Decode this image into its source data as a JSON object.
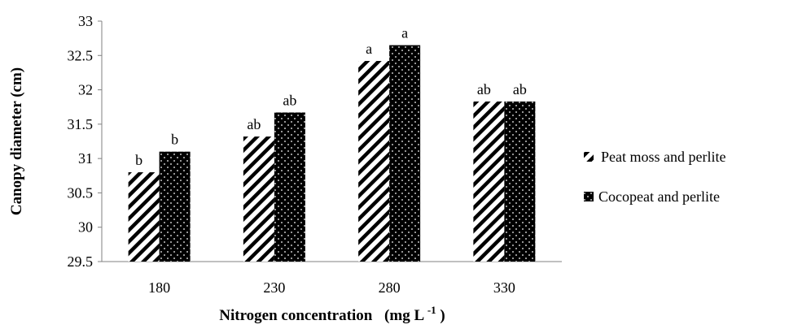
{
  "chart_data": {
    "type": "bar",
    "categories": [
      "180",
      "230",
      "280",
      "330"
    ],
    "series": [
      {
        "name": "Peat moss and perlite",
        "values": [
          30.8,
          31.32,
          32.42,
          31.83
        ],
        "labels": [
          "b",
          "ab",
          "a",
          "ab"
        ],
        "pattern": "diagonal-stripes"
      },
      {
        "name": "Cocopeat and perlite",
        "values": [
          31.1,
          31.67,
          32.65,
          31.83
        ],
        "labels": [
          "b",
          "ab",
          "a",
          "ab"
        ],
        "pattern": "dotted-black"
      }
    ],
    "xlabel": "Nitrogen concentration",
    "xlabel_unit": "(mg L",
    "xlabel_sup": "-1",
    "xlabel_close": ")",
    "ylabel": "Canopy  diameter  (cm)",
    "ylim": [
      29.5,
      33
    ],
    "yticks": [
      "29.5",
      "30",
      "30.5",
      "31",
      "31.5",
      "32",
      "32.5",
      "33"
    ],
    "grid": false,
    "legend_position": "right"
  }
}
